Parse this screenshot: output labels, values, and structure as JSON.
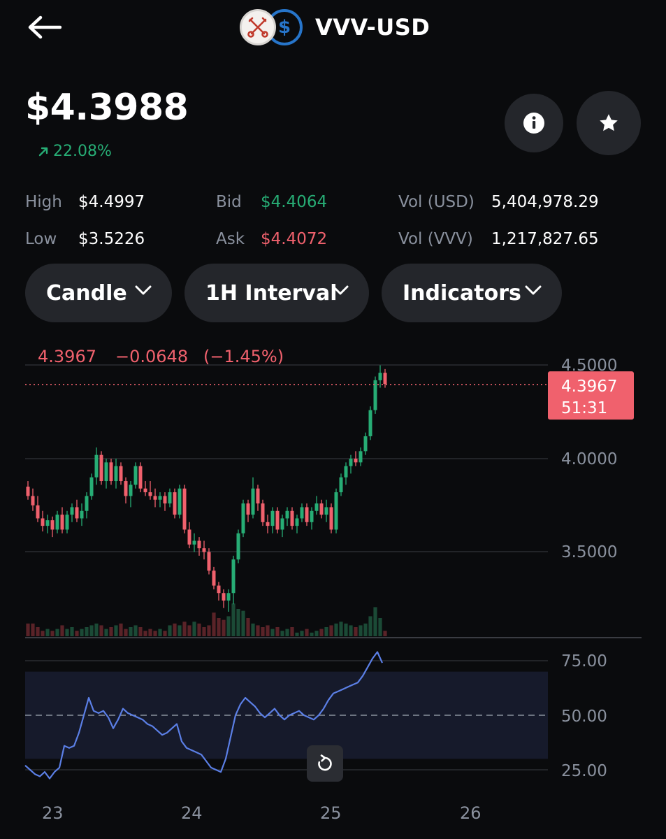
{
  "header": {
    "title": "VVV-USD",
    "back_icon": "arrow-left-icon",
    "base_icon": "vvv-keys-logo",
    "quote_icon": "usdc-dollar-icon"
  },
  "price": "$4.3988",
  "change": {
    "value": "22.08%",
    "direction": "up",
    "color": "#27ad75"
  },
  "stats": {
    "high_label": "High",
    "high_value": "$4.4997",
    "low_label": "Low",
    "low_value": "$3.5226",
    "bid_label": "Bid",
    "bid_value": "$4.4064",
    "ask_label": "Ask",
    "ask_value": "$4.4072",
    "vol_usd_label": "Vol (USD)",
    "vol_usd_value": "5,404,978.29",
    "vol_vvv_label": "Vol (VVV)",
    "vol_vvv_value": "1,217,827.65"
  },
  "controls": {
    "chart_type": "Candle",
    "interval": "1H Interval",
    "indicators": "Indicators"
  },
  "colors": {
    "up": "#27ad75",
    "down": "#f0616d",
    "rsi_line": "#5b7fe6",
    "background": "#0a0b0d",
    "pill": "#24262b"
  },
  "chart_data": {
    "type": "candlestick",
    "ohlc_header": {
      "close": "4.3967",
      "change": "−0.0648",
      "change_pct": "(−1.45%)"
    },
    "last_price_tag": {
      "price": "4.3967",
      "countdown": "51:31"
    },
    "price_axis": {
      "ticks": [
        "4.5000",
        "4.0000",
        "3.5000"
      ],
      "tick_values": [
        4.5,
        4.0,
        3.5
      ]
    },
    "rsi_axis": {
      "ticks": [
        "75.00",
        "50.00",
        "25.00"
      ],
      "tick_values": [
        75,
        50,
        25
      ],
      "band": [
        30,
        70
      ]
    },
    "x_labels": [
      "23",
      "24",
      "25",
      "26"
    ],
    "candles": [
      [
        3.85,
        3.88,
        3.78,
        3.8
      ],
      [
        3.8,
        3.84,
        3.72,
        3.75
      ],
      [
        3.75,
        3.8,
        3.66,
        3.68
      ],
      [
        3.68,
        3.72,
        3.61,
        3.64
      ],
      [
        3.64,
        3.7,
        3.6,
        3.67
      ],
      [
        3.67,
        3.69,
        3.58,
        3.62
      ],
      [
        3.62,
        3.72,
        3.6,
        3.7
      ],
      [
        3.7,
        3.74,
        3.6,
        3.62
      ],
      [
        3.62,
        3.72,
        3.6,
        3.7
      ],
      [
        3.7,
        3.76,
        3.66,
        3.74
      ],
      [
        3.74,
        3.78,
        3.66,
        3.68
      ],
      [
        3.68,
        3.76,
        3.64,
        3.72
      ],
      [
        3.72,
        3.82,
        3.68,
        3.8
      ],
      [
        3.8,
        3.92,
        3.78,
        3.9
      ],
      [
        3.9,
        4.06,
        3.86,
        4.02
      ],
      [
        4.02,
        4.04,
        3.86,
        3.88
      ],
      [
        3.88,
        4.0,
        3.84,
        3.98
      ],
      [
        3.98,
        4.0,
        3.86,
        3.88
      ],
      [
        3.88,
        4.0,
        3.84,
        3.96
      ],
      [
        3.96,
        3.98,
        3.86,
        3.88
      ],
      [
        3.88,
        3.9,
        3.76,
        3.8
      ],
      [
        3.8,
        3.88,
        3.74,
        3.86
      ],
      [
        3.86,
        3.98,
        3.84,
        3.96
      ],
      [
        3.96,
        3.98,
        3.82,
        3.84
      ],
      [
        3.84,
        3.88,
        3.8,
        3.82
      ],
      [
        3.82,
        3.88,
        3.78,
        3.8
      ],
      [
        3.8,
        3.84,
        3.74,
        3.78
      ],
      [
        3.78,
        3.82,
        3.74,
        3.8
      ],
      [
        3.8,
        3.82,
        3.72,
        3.76
      ],
      [
        3.76,
        3.84,
        3.74,
        3.82
      ],
      [
        3.82,
        3.84,
        3.68,
        3.7
      ],
      [
        3.7,
        3.86,
        3.68,
        3.84
      ],
      [
        3.84,
        3.86,
        3.6,
        3.62
      ],
      [
        3.62,
        3.66,
        3.52,
        3.54
      ],
      [
        3.54,
        3.6,
        3.5,
        3.56
      ],
      [
        3.56,
        3.58,
        3.48,
        3.52
      ],
      [
        3.52,
        3.56,
        3.46,
        3.5
      ],
      [
        3.5,
        3.52,
        3.38,
        3.4
      ],
      [
        3.4,
        3.42,
        3.3,
        3.32
      ],
      [
        3.32,
        3.34,
        3.24,
        3.28
      ],
      [
        3.28,
        3.3,
        3.2,
        3.24
      ],
      [
        3.24,
        3.3,
        3.18,
        3.28
      ],
      [
        3.28,
        3.48,
        3.22,
        3.46
      ],
      [
        3.46,
        3.62,
        3.44,
        3.6
      ],
      [
        3.6,
        3.78,
        3.58,
        3.76
      ],
      [
        3.76,
        3.78,
        3.66,
        3.7
      ],
      [
        3.7,
        3.9,
        3.68,
        3.84
      ],
      [
        3.84,
        3.86,
        3.72,
        3.76
      ],
      [
        3.76,
        3.78,
        3.64,
        3.66
      ],
      [
        3.66,
        3.7,
        3.6,
        3.64
      ],
      [
        3.64,
        3.74,
        3.6,
        3.72
      ],
      [
        3.72,
        3.74,
        3.6,
        3.62
      ],
      [
        3.62,
        3.7,
        3.58,
        3.68
      ],
      [
        3.68,
        3.74,
        3.64,
        3.72
      ],
      [
        3.72,
        3.74,
        3.62,
        3.64
      ],
      [
        3.64,
        3.7,
        3.6,
        3.68
      ],
      [
        3.68,
        3.76,
        3.66,
        3.74
      ],
      [
        3.74,
        3.76,
        3.64,
        3.66
      ],
      [
        3.66,
        3.74,
        3.62,
        3.72
      ],
      [
        3.72,
        3.8,
        3.7,
        3.76
      ],
      [
        3.76,
        3.78,
        3.68,
        3.7
      ],
      [
        3.7,
        3.78,
        3.66,
        3.74
      ],
      [
        3.74,
        3.76,
        3.6,
        3.62
      ],
      [
        3.62,
        3.84,
        3.6,
        3.82
      ],
      [
        3.82,
        3.92,
        3.8,
        3.9
      ],
      [
        3.9,
        3.98,
        3.86,
        3.96
      ],
      [
        3.96,
        4.02,
        3.92,
        4.0
      ],
      [
        4.0,
        4.04,
        3.96,
        3.98
      ],
      [
        3.98,
        4.06,
        3.96,
        4.04
      ],
      [
        4.04,
        4.14,
        4.02,
        4.12
      ],
      [
        4.12,
        4.28,
        4.1,
        4.26
      ],
      [
        4.26,
        4.44,
        4.24,
        4.42
      ],
      [
        4.42,
        4.5,
        4.38,
        4.46
      ],
      [
        4.46,
        4.48,
        4.38,
        4.4
      ]
    ],
    "volume": [
      0.35,
      0.35,
      0.25,
      0.15,
      0.2,
      0.15,
      0.2,
      0.3,
      0.2,
      0.25,
      0.15,
      0.2,
      0.25,
      0.3,
      0.35,
      0.3,
      0.2,
      0.25,
      0.3,
      0.35,
      0.2,
      0.25,
      0.3,
      0.25,
      0.15,
      0.2,
      0.15,
      0.2,
      0.15,
      0.3,
      0.35,
      0.3,
      0.4,
      0.3,
      0.4,
      0.35,
      0.25,
      0.3,
      0.65,
      0.5,
      0.45,
      0.55,
      0.9,
      0.75,
      0.7,
      0.5,
      0.35,
      0.3,
      0.25,
      0.3,
      0.2,
      0.25,
      0.15,
      0.2,
      0.25,
      0.1,
      0.15,
      0.2,
      0.1,
      0.15,
      0.2,
      0.25,
      0.3,
      0.35,
      0.4,
      0.35,
      0.3,
      0.25,
      0.3,
      0.35,
      0.55,
      0.8,
      0.5,
      0.15
    ],
    "rsi": [
      27,
      25,
      23,
      22,
      24,
      21,
      24,
      26,
      36,
      35,
      36,
      42,
      50,
      58,
      52,
      51,
      52,
      49,
      44,
      48,
      53,
      51,
      50,
      49,
      48,
      46,
      45,
      43,
      41,
      42,
      44,
      46,
      38,
      35,
      34,
      33,
      32,
      29,
      26,
      25,
      24,
      30,
      40,
      50,
      55,
      58,
      56,
      54,
      51,
      49,
      51,
      53,
      50,
      48,
      50,
      51,
      52,
      50,
      49,
      48,
      50,
      53,
      57,
      60,
      61,
      62,
      63,
      64,
      65,
      68,
      72,
      76,
      79,
      74
    ]
  }
}
